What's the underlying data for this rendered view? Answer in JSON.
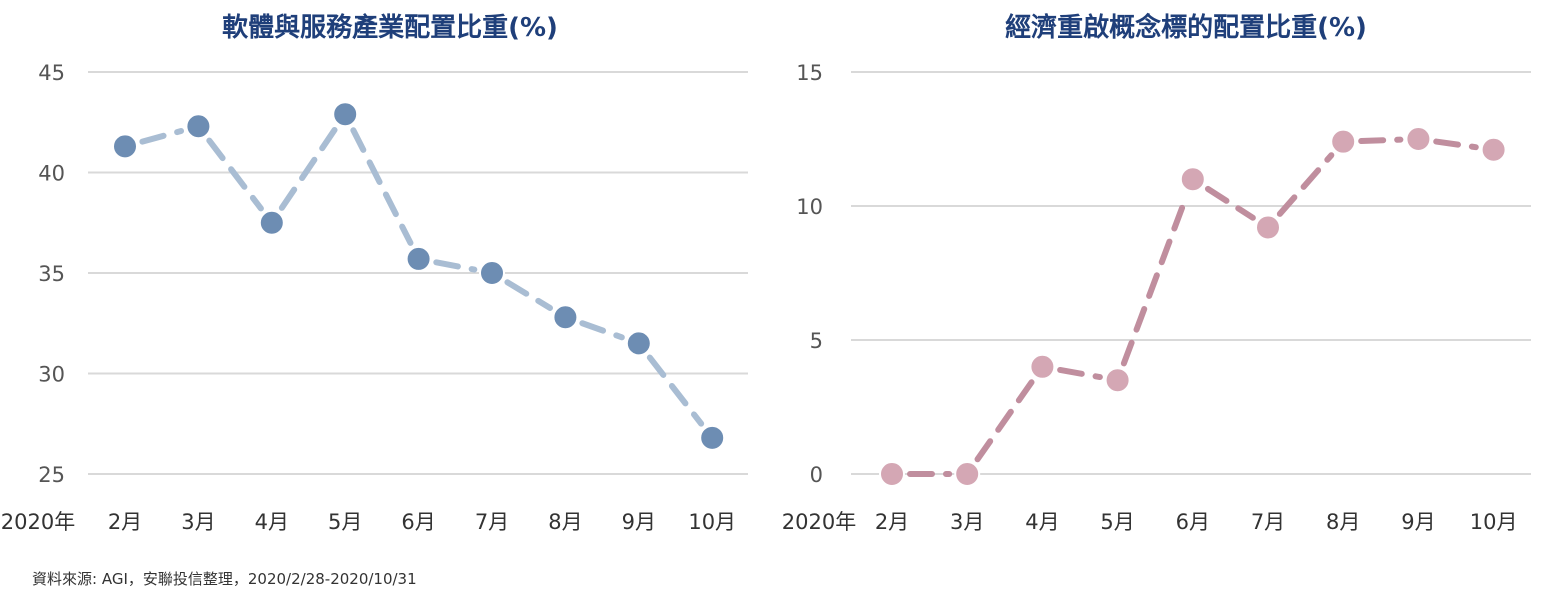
{
  "chart_data": [
    {
      "type": "line",
      "title": "軟體與服務產業配置比重(%)",
      "categories": [
        "2月",
        "3月",
        "4月",
        "5月",
        "6月",
        "7月",
        "8月",
        "9月",
        "10月"
      ],
      "year_label": "2020年",
      "values": [
        41.3,
        42.3,
        37.5,
        42.9,
        35.7,
        35.0,
        32.8,
        31.5,
        26.8
      ],
      "ylim": [
        25,
        45
      ],
      "yticks": [
        25,
        30,
        35,
        40,
        45
      ],
      "grid": true,
      "colors": {
        "line": "#a9bdd3",
        "marker": "#6d8db3"
      }
    },
    {
      "type": "line",
      "title": "經濟重啟概念標的配置比重(%)",
      "categories": [
        "2月",
        "3月",
        "4月",
        "5月",
        "6月",
        "7月",
        "8月",
        "9月",
        "10月"
      ],
      "year_label": "2020年",
      "values": [
        0.0,
        0.0,
        4.0,
        3.5,
        11.0,
        9.2,
        12.4,
        12.5,
        12.1
      ],
      "ylim": [
        0,
        15
      ],
      "yticks": [
        0,
        5,
        10,
        15
      ],
      "grid": true,
      "colors": {
        "line": "#c08e9e",
        "marker": "#d4a7b4"
      }
    }
  ],
  "source_note": "資料來源: AGI，安聯投信整理，2020/2/28-2020/10/31"
}
